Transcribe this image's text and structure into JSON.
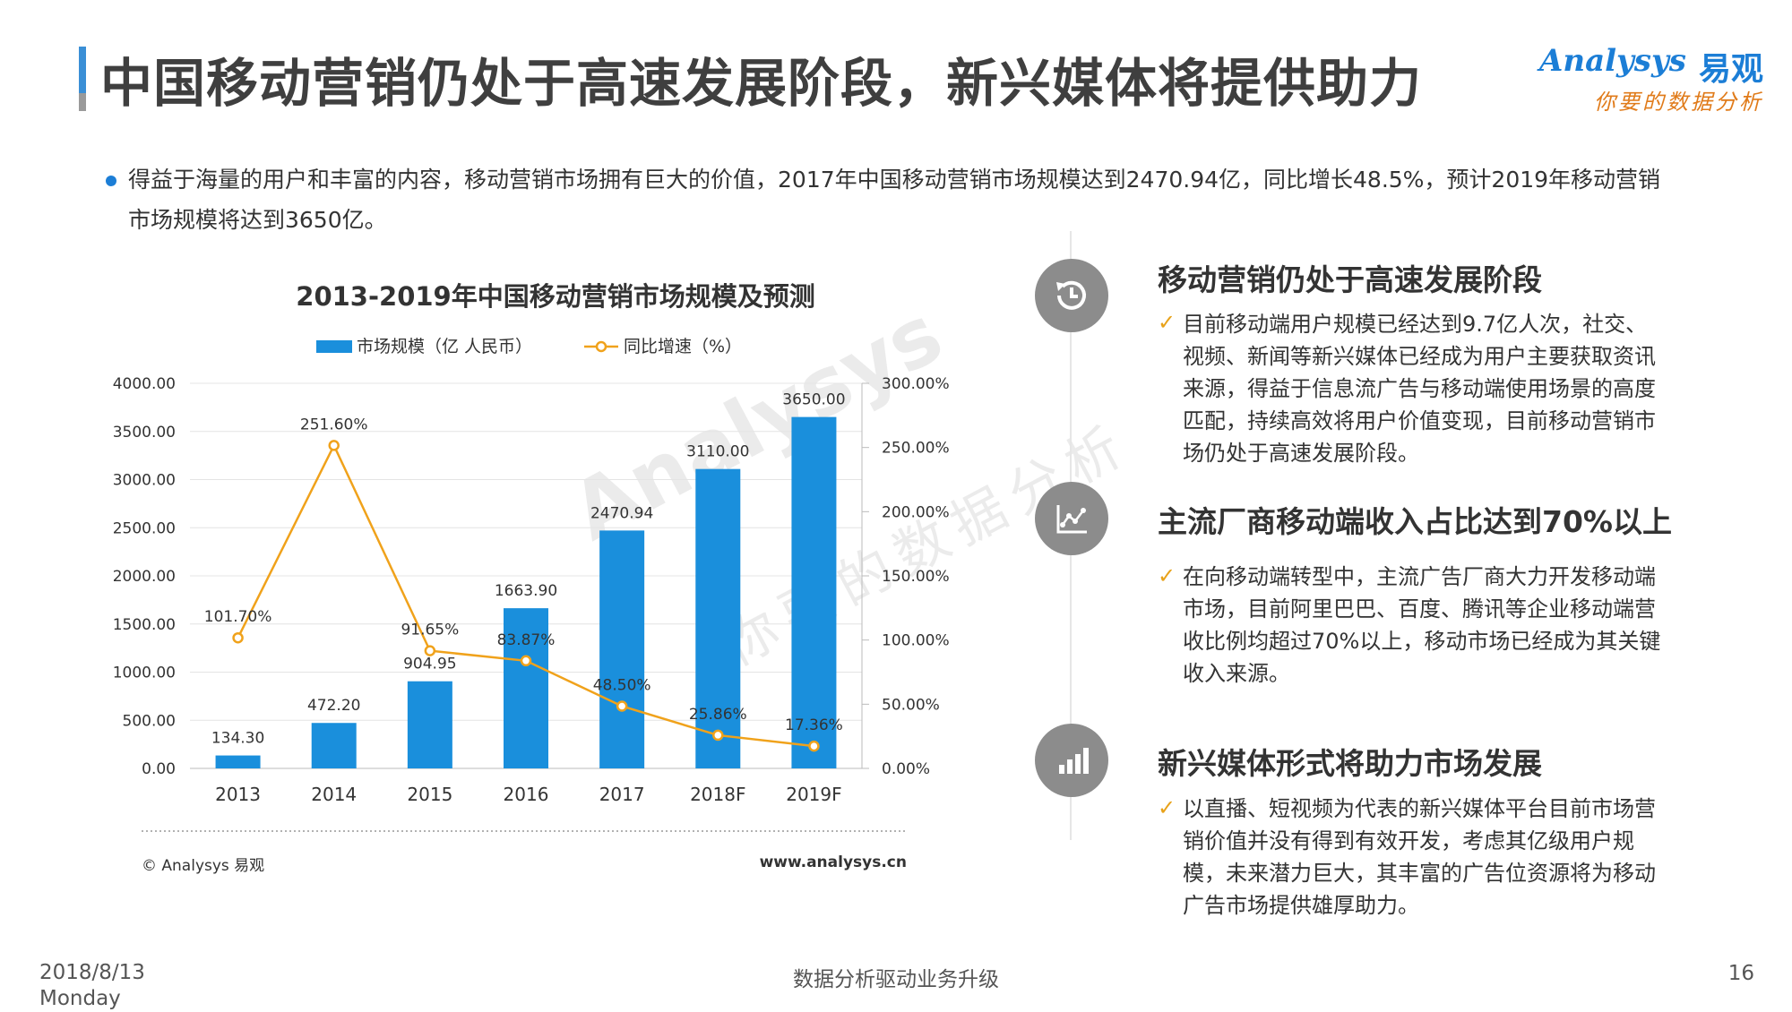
{
  "header": {
    "title": "中国移动营销仍处于高速发展阶段，新兴媒体将提供助力",
    "logo_en": "Analysys",
    "logo_cn": "易观",
    "logo_slogan": "你要的数据分析"
  },
  "intro": "得益于海量的用户和丰富的内容，移动营销市场拥有巨大的价值，2017年中国移动营销市场规模达到2470.94亿，同比增长48.5%，预计2019年移动营销市场规模将达到3650亿。",
  "chart_data": {
    "type": "bar",
    "title": "2013-2019年中国移动营销市场规模及预测",
    "categories": [
      "2013",
      "2014",
      "2015",
      "2016",
      "2017",
      "2018F",
      "2019F"
    ],
    "series": [
      {
        "name": "市场规模（亿 人民币）",
        "type": "bar",
        "values": [
          134.3,
          472.2,
          904.95,
          1663.9,
          2470.94,
          3110.0,
          3650.0
        ],
        "labels": [
          "134.30",
          "472.20",
          "904.95",
          "1663.90",
          "2470.94",
          "3110.00",
          "3650.00"
        ]
      },
      {
        "name": "同比增速（%）",
        "type": "line",
        "axis": "right",
        "values": [
          101.7,
          251.6,
          91.65,
          83.87,
          48.5,
          25.86,
          17.36
        ],
        "labels": [
          "101.70%",
          "251.60%",
          "91.65%",
          "83.87%",
          "48.50%",
          "25.86%",
          "17.36%"
        ]
      }
    ],
    "ylim": [
      0,
      4000
    ],
    "y2lim": [
      0,
      300
    ],
    "yticks": [
      "0.00",
      "500.00",
      "1000.00",
      "1500.00",
      "2000.00",
      "2500.00",
      "3000.00",
      "3500.00",
      "4000.00"
    ],
    "y2ticks": [
      "0.00%",
      "50.00%",
      "100.00%",
      "150.00%",
      "200.00%",
      "250.00%",
      "300.00%"
    ],
    "legend": "top",
    "grid": true,
    "colors": {
      "bar": "#1a8fdc",
      "line": "#f0a21b"
    },
    "source_left": "© Analysys 易观",
    "source_right": "www.analysys.cn"
  },
  "sections": [
    {
      "icon": "history-icon",
      "title": "移动营销仍处于高速发展阶段",
      "text": "目前移动端用户规模已经达到9.7亿人次，社交、视频、新闻等新兴媒体已经成为用户主要获取资讯来源，得益于信息流广告与移动端使用场景的高度匹配，持续高效将用户价值变现，目前移动营销市场仍处于高速发展阶段。"
    },
    {
      "icon": "scatter-chart-icon",
      "title": "主流厂商移动端收入占比达到70%以上",
      "text": "在向移动端转型中，主流广告厂商大力开发移动端市场，目前阿里巴巴、百度、腾讯等企业移动端营收比例均超过70%以上，移动市场已经成为其关键收入来源。"
    },
    {
      "icon": "bar-chart-icon",
      "title": "新兴媒体形式将助力市场发展",
      "text": "以直播、短视频为代表的新兴媒体平台目前市场营销价值并没有得到有效开发，考虑其亿级用户规模，未来潜力巨大，其丰富的广告位资源将为移动广告市场提供雄厚助力。"
    }
  ],
  "footer": {
    "date": "2018/8/13",
    "weekday": "Monday",
    "center": "数据分析驱动业务升级",
    "page": "16"
  }
}
